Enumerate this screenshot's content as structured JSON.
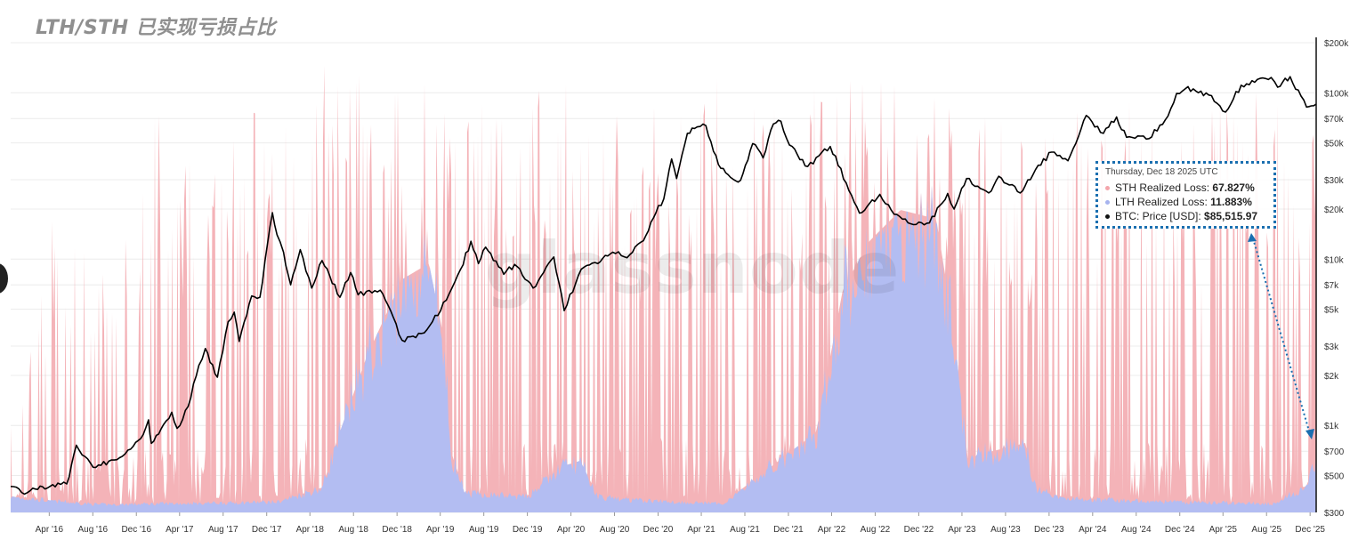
{
  "title": "LTH/STH 已实现亏损占比",
  "watermark": "glassnode",
  "colors": {
    "sth_area": "#f4b3b8",
    "lth_area": "#b3bdf2",
    "price_line": "#000000",
    "grid": "#ececec",
    "axis": "#111111",
    "tooltip_border": "#1a6fb0",
    "sth_dot": "#f4a5ab",
    "lth_dot": "#a7b3ee",
    "price_dot": "#111111"
  },
  "tooltip": {
    "date": "Thursday, Dec 18 2025 UTC",
    "rows": [
      {
        "label": "STH Realized Loss:",
        "value": "67.827%"
      },
      {
        "label": "LTH Realized Loss:",
        "value": "11.883%"
      },
      {
        "label": "BTC: Price [USD]:",
        "value": "$85,515.97"
      }
    ]
  },
  "chart_data": {
    "type": "area",
    "x_axis": {
      "range": [
        "2015-12-15",
        "2025-12-18"
      ],
      "tick_labels": [
        "Apr '16",
        "Aug '16",
        "Dec '16",
        "Apr '17",
        "Aug '17",
        "Dec '17",
        "Apr '18",
        "Aug '18",
        "Dec '18",
        "Apr '19",
        "Aug '19",
        "Dec '19",
        "Apr '20",
        "Aug '20",
        "Dec '20",
        "Apr '21",
        "Aug '21",
        "Dec '21",
        "Apr '22",
        "Aug '22",
        "Dec '22",
        "Apr '23",
        "Aug '23",
        "Dec '23",
        "Apr '24",
        "Aug '24",
        "Dec '24",
        "Apr '25",
        "Aug '25",
        "Dec '25"
      ]
    },
    "y_axis_right": {
      "scale": "log",
      "range": [
        300,
        200000
      ],
      "tick_values": [
        300,
        500,
        700,
        1000,
        2000,
        3000,
        5000,
        7000,
        10000,
        20000,
        30000,
        50000,
        70000,
        100000,
        200000
      ],
      "tick_labels": [
        "$300",
        "$500",
        "$700",
        "$1k",
        "$2k",
        "$3k",
        "$5k",
        "$7k",
        "$10k",
        "$20k",
        "$30k",
        "$50k",
        "$70k",
        "$100k",
        "$200k"
      ]
    },
    "grid": true,
    "series": [
      {
        "name": "STH Realized Loss",
        "kind": "stacked-area-percent",
        "color": "#f4b3b8"
      },
      {
        "name": "LTH Realized Loss",
        "kind": "stacked-area-percent",
        "color": "#b3bdf2"
      },
      {
        "name": "BTC: Price [USD]",
        "kind": "line",
        "scale": "log",
        "color": "#000000",
        "points": [
          [
            "2015-12-15",
            430
          ],
          [
            "2016-01-15",
            395
          ],
          [
            "2016-02-15",
            420
          ],
          [
            "2016-03-20",
            415
          ],
          [
            "2016-04-25",
            450
          ],
          [
            "2016-05-20",
            445
          ],
          [
            "2016-06-16",
            760
          ],
          [
            "2016-07-10",
            650
          ],
          [
            "2016-08-02",
            560
          ],
          [
            "2016-09-15",
            610
          ],
          [
            "2016-10-15",
            640
          ],
          [
            "2016-11-15",
            720
          ],
          [
            "2016-12-20",
            880
          ],
          [
            "2017-01-04",
            1080
          ],
          [
            "2017-01-12",
            780
          ],
          [
            "2017-02-15",
            1010
          ],
          [
            "2017-03-10",
            1200
          ],
          [
            "2017-03-25",
            960
          ],
          [
            "2017-04-25",
            1300
          ],
          [
            "2017-05-25",
            2300
          ],
          [
            "2017-06-12",
            2900
          ],
          [
            "2017-07-16",
            1950
          ],
          [
            "2017-08-15",
            4200
          ],
          [
            "2017-09-01",
            4800
          ],
          [
            "2017-09-15",
            3200
          ],
          [
            "2017-10-20",
            6000
          ],
          [
            "2017-11-12",
            5900
          ],
          [
            "2017-12-17",
            19000
          ],
          [
            "2017-12-30",
            14000
          ],
          [
            "2018-01-17",
            11000
          ],
          [
            "2018-02-06",
            7000
          ],
          [
            "2018-03-05",
            11400
          ],
          [
            "2018-04-06",
            6700
          ],
          [
            "2018-05-05",
            9800
          ],
          [
            "2018-06-24",
            5900
          ],
          [
            "2018-07-24",
            8300
          ],
          [
            "2018-08-14",
            6100
          ],
          [
            "2018-10-15",
            6500
          ],
          [
            "2018-11-20",
            4500
          ],
          [
            "2018-12-15",
            3250
          ],
          [
            "2019-02-15",
            3600
          ],
          [
            "2019-04-02",
            4900
          ],
          [
            "2019-05-28",
            8700
          ],
          [
            "2019-06-26",
            12800
          ],
          [
            "2019-07-17",
            9400
          ],
          [
            "2019-08-06",
            11800
          ],
          [
            "2019-09-26",
            8100
          ],
          [
            "2019-10-26",
            9300
          ],
          [
            "2019-12-17",
            6700
          ],
          [
            "2020-02-13",
            10300
          ],
          [
            "2020-03-13",
            4900
          ],
          [
            "2020-04-30",
            8700
          ],
          [
            "2020-06-15",
            9400
          ],
          [
            "2020-07-27",
            11000
          ],
          [
            "2020-09-05",
            10200
          ],
          [
            "2020-10-21",
            12900
          ],
          [
            "2020-11-25",
            19000
          ],
          [
            "2020-12-17",
            23000
          ],
          [
            "2021-01-08",
            40000
          ],
          [
            "2021-01-22",
            30500
          ],
          [
            "2021-02-21",
            57000
          ],
          [
            "2021-03-13",
            61000
          ],
          [
            "2021-04-14",
            63500
          ],
          [
            "2021-05-19",
            37000
          ],
          [
            "2021-06-22",
            31000
          ],
          [
            "2021-07-20",
            29800
          ],
          [
            "2021-08-23",
            49500
          ],
          [
            "2021-09-21",
            40600
          ],
          [
            "2021-10-20",
            65000
          ],
          [
            "2021-11-10",
            67500
          ],
          [
            "2021-12-04",
            48500
          ],
          [
            "2022-01-24",
            36000
          ],
          [
            "2022-03-28",
            47500
          ],
          [
            "2022-05-12",
            28700
          ],
          [
            "2022-06-18",
            18900
          ],
          [
            "2022-08-14",
            24500
          ],
          [
            "2022-09-15",
            19700
          ],
          [
            "2022-11-09",
            16300
          ],
          [
            "2022-12-31",
            16500
          ],
          [
            "2023-02-20",
            24800
          ],
          [
            "2023-03-10",
            20000
          ],
          [
            "2023-04-14",
            30500
          ],
          [
            "2023-06-15",
            25000
          ],
          [
            "2023-07-13",
            31500
          ],
          [
            "2023-09-11",
            25000
          ],
          [
            "2023-10-24",
            34500
          ],
          [
            "2023-12-08",
            44000
          ],
          [
            "2024-01-23",
            39000
          ],
          [
            "2024-03-14",
            73000
          ],
          [
            "2024-05-01",
            57000
          ],
          [
            "2024-06-07",
            71500
          ],
          [
            "2024-07-05",
            54000
          ],
          [
            "2024-09-06",
            53000
          ],
          [
            "2024-10-29",
            72500
          ],
          [
            "2024-11-22",
            99000
          ],
          [
            "2024-12-17",
            106000
          ],
          [
            "2025-02-20",
            97000
          ],
          [
            "2025-04-08",
            76500
          ],
          [
            "2025-05-22",
            111000
          ],
          [
            "2025-07-14",
            122000
          ],
          [
            "2025-08-14",
            123500
          ],
          [
            "2025-09-01",
            108000
          ],
          [
            "2025-10-06",
            125000
          ],
          [
            "2025-11-21",
            82000
          ],
          [
            "2025-12-18",
            85515.97
          ]
        ]
      }
    ]
  }
}
